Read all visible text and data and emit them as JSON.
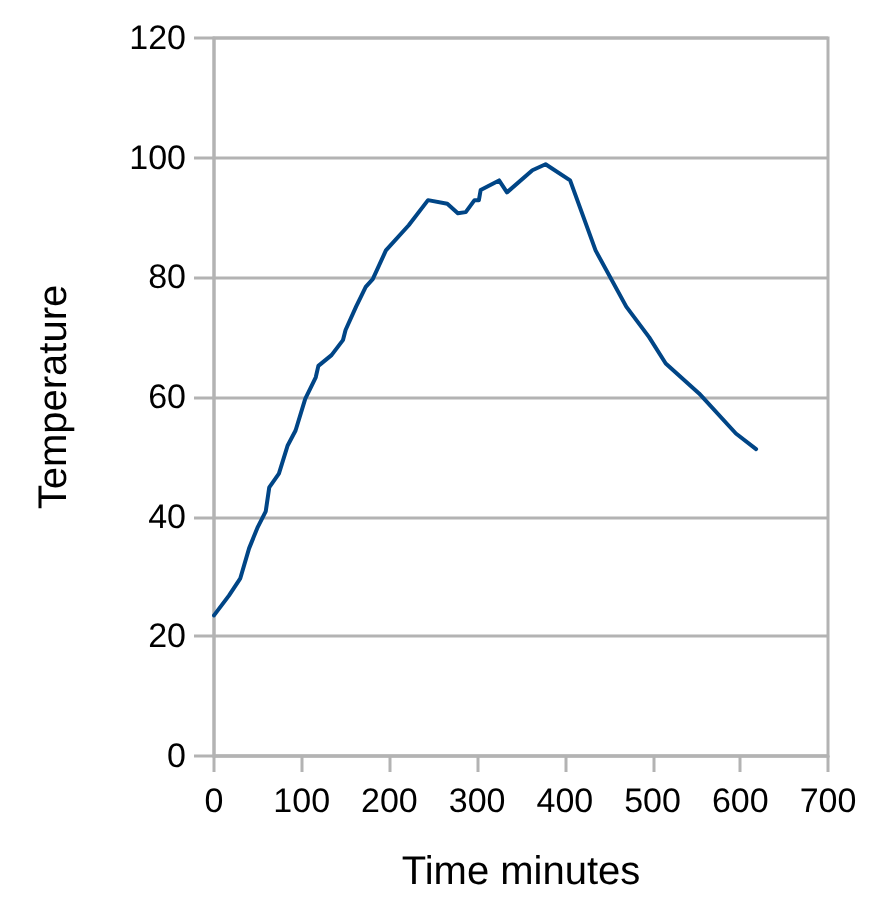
{
  "chart_data": {
    "type": "line",
    "xlabel": "Time minutes",
    "ylabel": "Temperature",
    "xlim": [
      0,
      700
    ],
    "xticks": [
      0,
      100,
      200,
      300,
      400,
      500,
      600,
      700
    ],
    "ylim": [
      0,
      120
    ],
    "yticks": [
      0,
      20,
      40,
      60,
      80,
      100,
      120
    ],
    "grid": "y",
    "marker": "none",
    "line_style": "solid",
    "series": [
      {
        "color": "#004586",
        "x": [
          0,
          17,
          30,
          40,
          50,
          59,
          63,
          74,
          84,
          93,
          104,
          116,
          119,
          134,
          147,
          150,
          162,
          173,
          181,
          196,
          222,
          244,
          266,
          278,
          287,
          297,
          302,
          304,
          325,
          334,
          363,
          378,
          406,
          435,
          470,
          496,
          515,
          553,
          595,
          618
        ],
        "values": [
          23.5,
          26.8,
          29.7,
          34.7,
          38.3,
          40.9,
          44.9,
          47.2,
          51.9,
          54.4,
          59.7,
          63.3,
          65.2,
          67.0,
          69.5,
          71.2,
          75.1,
          78.4,
          79.7,
          84.5,
          88.7,
          92.9,
          92.3,
          90.7,
          90.9,
          92.9,
          92.9,
          94.6,
          96.2,
          94.2,
          97.9,
          98.9,
          96.2,
          84.5,
          75.1,
          70.0,
          65.6,
          60.6,
          53.9,
          51.3
        ]
      }
    ]
  }
}
